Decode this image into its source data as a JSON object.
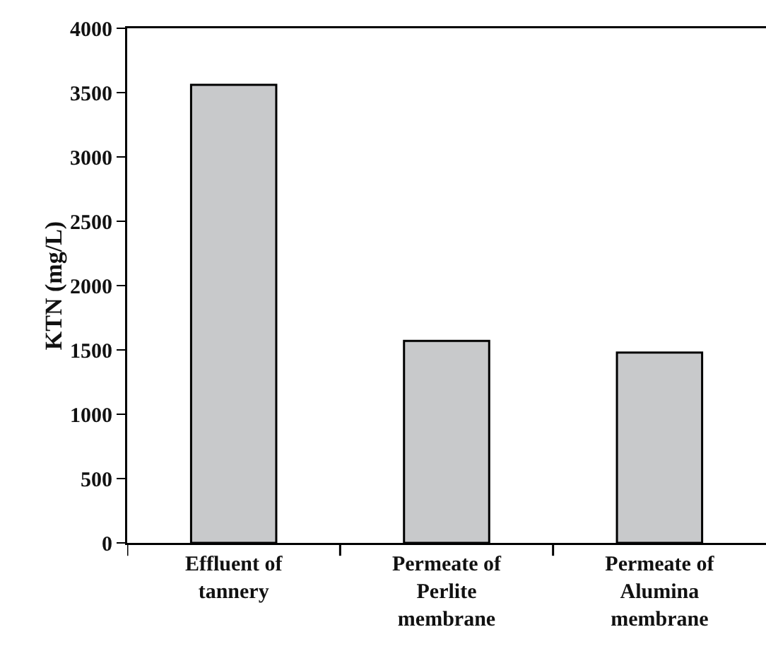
{
  "chart_data": {
    "type": "bar",
    "ylabel": "KTN (mg/L)",
    "categories": [
      "Effluent of tannery",
      "Permeate of Perlite membrane",
      "Permeate of Alumina membrane"
    ],
    "values": [
      3560,
      1570,
      1480
    ],
    "color": "#c8c9cb",
    "ylim": [
      0,
      4000
    ],
    "yticks": [
      0,
      500,
      1000,
      1500,
      2000,
      2500,
      3000,
      3500,
      4000
    ]
  }
}
